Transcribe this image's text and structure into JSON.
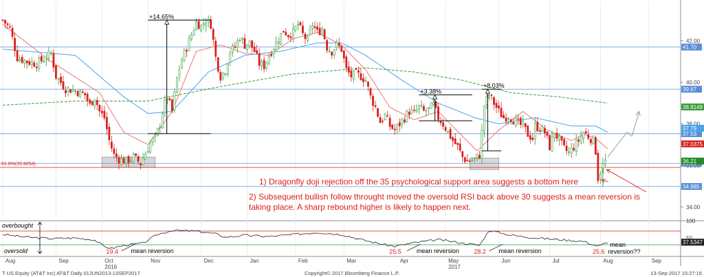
{
  "chart_data": {
    "type": "candlestick",
    "symbol": "T US Equity (AT&T Inc) AT&T",
    "footer": {
      "left": "T US Equity (AT&T Inc) AT&T  Daily 01JUN2013-13SEP2017",
      "center": "Copyright© 2017 Bloomberg Finance L.P.",
      "right": "13-Sep-2017 15:27:16"
    },
    "y_axis": {
      "range": [
        33.4,
        43.9
      ],
      "ticks": [
        34.0,
        36.0,
        38.0,
        40.0,
        42.0
      ],
      "tick_labels": [
        "34.00",
        "36.00",
        "38.00",
        "40.00",
        "42.00"
      ]
    },
    "x_axis": {
      "months": [
        "Aug",
        "Sep",
        "Oct",
        "Nov",
        "Dec",
        "Jan",
        "Feb",
        "Mar",
        "Apr",
        "May",
        "Jun",
        "Jul",
        "Aug",
        "Sep"
      ],
      "month_index": [
        0,
        22,
        41,
        60,
        82,
        101,
        121,
        141,
        163,
        183,
        205,
        226,
        247,
        267
      ],
      "years": [
        {
          "label": "2016",
          "index": 41
        },
        {
          "label": "2017",
          "index": 183
        }
      ],
      "count": 280
    },
    "price_anchors": [
      [
        0,
        43.0
      ],
      [
        3,
        42.6
      ],
      [
        6,
        41.2
      ],
      [
        10,
        41.0
      ],
      [
        14,
        40.9
      ],
      [
        18,
        41.2
      ],
      [
        20,
        41.4
      ],
      [
        22,
        40.3
      ],
      [
        26,
        39.7
      ],
      [
        30,
        39.6
      ],
      [
        34,
        39.4
      ],
      [
        36,
        38.9
      ],
      [
        38,
        39.3
      ],
      [
        40,
        38.6
      ],
      [
        42,
        38.3
      ],
      [
        44,
        37.2
      ],
      [
        46,
        36.5
      ],
      [
        48,
        36.3
      ],
      [
        51,
        36.2
      ],
      [
        54,
        36.4
      ],
      [
        57,
        36.1
      ],
      [
        59,
        36.6
      ],
      [
        61,
        37.1
      ],
      [
        63,
        37.3
      ],
      [
        65,
        38.0
      ],
      [
        66,
        38.6
      ],
      [
        68,
        39.3
      ],
      [
        70,
        38.6
      ],
      [
        72,
        40.2
      ],
      [
        74,
        41.1
      ],
      [
        76,
        41.7
      ],
      [
        78,
        42.3
      ],
      [
        80,
        42.9
      ],
      [
        82,
        42.7
      ],
      [
        84,
        43.0
      ],
      [
        86,
        42.8
      ],
      [
        88,
        41.2
      ],
      [
        90,
        40.3
      ],
      [
        92,
        40.6
      ],
      [
        94,
        41.5
      ],
      [
        96,
        41.7
      ],
      [
        98,
        42.2
      ],
      [
        100,
        41.8
      ],
      [
        102,
        41.9
      ],
      [
        104,
        41.5
      ],
      [
        106,
        40.9
      ],
      [
        108,
        40.8
      ],
      [
        110,
        41.3
      ],
      [
        112,
        41.7
      ],
      [
        114,
        42.1
      ],
      [
        116,
        42.5
      ],
      [
        118,
        42.3
      ],
      [
        120,
        42.4
      ],
      [
        122,
        42.8
      ],
      [
        124,
        42.3
      ],
      [
        126,
        42.0
      ],
      [
        128,
        42.8
      ],
      [
        130,
        42.4
      ],
      [
        132,
        42.6
      ],
      [
        134,
        41.7
      ],
      [
        136,
        41.5
      ],
      [
        138,
        41.8
      ],
      [
        140,
        41.6
      ],
      [
        142,
        40.6
      ],
      [
        144,
        40.3
      ],
      [
        146,
        40.4
      ],
      [
        148,
        40.3
      ],
      [
        150,
        40.1
      ],
      [
        152,
        39.3
      ],
      [
        154,
        38.8
      ],
      [
        156,
        38.1
      ],
      [
        158,
        38.4
      ],
      [
        160,
        37.9
      ],
      [
        162,
        37.7
      ],
      [
        164,
        38.0
      ],
      [
        166,
        38.3
      ],
      [
        168,
        38.6
      ],
      [
        170,
        38.5
      ],
      [
        172,
        38.8
      ],
      [
        174,
        38.6
      ],
      [
        176,
        38.7
      ],
      [
        178,
        38.9
      ],
      [
        180,
        38.3
      ],
      [
        182,
        38.0
      ],
      [
        184,
        37.6
      ],
      [
        186,
        37.2
      ],
      [
        188,
        36.9
      ],
      [
        190,
        36.4
      ],
      [
        192,
        36.2
      ],
      [
        195,
        36.3
      ],
      [
        197,
        36.5
      ],
      [
        198,
        37.6
      ],
      [
        199,
        38.9
      ],
      [
        201,
        39.4
      ],
      [
        203,
        39.0
      ],
      [
        205,
        38.6
      ],
      [
        207,
        38.3
      ],
      [
        209,
        38.4
      ],
      [
        211,
        38.2
      ],
      [
        213,
        38.0
      ],
      [
        215,
        37.9
      ],
      [
        217,
        37.5
      ],
      [
        219,
        37.3
      ],
      [
        220,
        37.9
      ],
      [
        222,
        37.8
      ],
      [
        224,
        37.6
      ],
      [
        226,
        36.9
      ],
      [
        228,
        37.6
      ],
      [
        230,
        37.2
      ],
      [
        232,
        36.8
      ],
      [
        234,
        36.6
      ],
      [
        236,
        36.9
      ],
      [
        238,
        37.2
      ],
      [
        240,
        37.6
      ],
      [
        242,
        37.4
      ],
      [
        244,
        37.2
      ],
      [
        245,
        36.7
      ],
      [
        246,
        35.4
      ],
      [
        247,
        35.7
      ],
      [
        248,
        36.0
      ],
      [
        249,
        36.2
      ]
    ],
    "moving_averages": [
      {
        "name": "ma_short",
        "color": "#e87878",
        "anchors": [
          [
            0,
            42.8
          ],
          [
            20,
            41.0
          ],
          [
            40,
            39.5
          ],
          [
            50,
            37.6
          ],
          [
            60,
            37.0
          ],
          [
            70,
            38.6
          ],
          [
            80,
            41.5
          ],
          [
            90,
            41.8
          ],
          [
            100,
            41.4
          ],
          [
            110,
            41.3
          ],
          [
            120,
            42.1
          ],
          [
            130,
            42.4
          ],
          [
            140,
            41.8
          ],
          [
            150,
            40.6
          ],
          [
            160,
            38.8
          ],
          [
            170,
            38.2
          ],
          [
            180,
            38.6
          ],
          [
            190,
            37.4
          ],
          [
            196,
            36.7
          ],
          [
            205,
            37.7
          ],
          [
            215,
            38.6
          ],
          [
            225,
            37.7
          ],
          [
            235,
            37.2
          ],
          [
            240,
            37.5
          ],
          [
            245,
            37.3
          ],
          [
            250,
            36.8
          ]
        ]
      },
      {
        "name": "ma_mid",
        "color": "#4aa2e8",
        "anchors": [
          [
            0,
            41.6
          ],
          [
            30,
            41.3
          ],
          [
            50,
            39.3
          ],
          [
            60,
            38.5
          ],
          [
            70,
            38.6
          ],
          [
            85,
            40.5
          ],
          [
            100,
            41.3
          ],
          [
            115,
            41.5
          ],
          [
            130,
            41.9
          ],
          [
            140,
            41.9
          ],
          [
            150,
            41.3
          ],
          [
            165,
            40.1
          ],
          [
            180,
            39.0
          ],
          [
            195,
            38.3
          ],
          [
            205,
            38.0
          ],
          [
            220,
            38.3
          ],
          [
            235,
            37.9
          ],
          [
            245,
            37.9
          ],
          [
            250,
            37.6
          ]
        ]
      },
      {
        "name": "ma_long",
        "color": "#3a9a3a",
        "dashed": true,
        "anchors": [
          [
            0,
            38.9
          ],
          [
            30,
            39.1
          ],
          [
            60,
            39.1
          ],
          [
            90,
            39.8
          ],
          [
            120,
            40.4
          ],
          [
            150,
            40.7
          ],
          [
            170,
            40.5
          ],
          [
            190,
            40.1
          ],
          [
            210,
            39.5
          ],
          [
            230,
            39.3
          ],
          [
            250,
            39.0
          ]
        ]
      }
    ],
    "hlines": [
      {
        "value": 41.7,
        "color": "#5a8fd6",
        "label": "41.70",
        "label_bg": "#5a8fd6"
      },
      {
        "value": 39.67,
        "color": "#5a8fd6",
        "label": "39.67",
        "label_bg": "#5a8fd6"
      },
      {
        "value": 37.53,
        "color": "#5a8fd6",
        "label": "37.53",
        "label_bg": "#5a8fd6"
      },
      {
        "value": 36.1,
        "color": "#5a8fd6",
        "label": "36.10",
        "label_bg": "#5a8fd6"
      },
      {
        "value": 34.985,
        "color": "#5a8fd6",
        "label": "34.985",
        "label_bg": "#5a8fd6"
      },
      {
        "value": 35.9054,
        "color": "#d9201a",
        "label": "61.8%(35.9054)"
      }
    ],
    "last_values": [
      {
        "value": 38.8149,
        "label": "38.8149",
        "bg": "#3a9a3a"
      },
      {
        "value": 37.79,
        "label": "37.79",
        "bg": "#4aa2e8"
      },
      {
        "value": 37.0375,
        "label": "37.0375",
        "bg": "#d9201a"
      },
      {
        "value": 36.21,
        "label": "36.21",
        "bg": "#2a8a2a"
      }
    ],
    "gain_annotations": [
      {
        "label": "+14.65%",
        "x1": 60,
        "x2": 86,
        "y_base": 37.53,
        "y_top": 43.0
      },
      {
        "label": "+3.38%",
        "x1": 172,
        "x2": 194,
        "y_base": 38.15,
        "y_top": 39.4
      },
      {
        "label": "+8.03%",
        "x1": 198,
        "x2": 206,
        "y_base": 36.7,
        "y_top": 39.67
      }
    ],
    "support_boxes": [
      {
        "x1": 41,
        "x2": 63,
        "y1": 35.9,
        "y2": 36.4
      },
      {
        "x1": 193,
        "x2": 205,
        "y1": 35.8,
        "y2": 36.35
      }
    ],
    "projection": {
      "points": [
        [
          250,
          36.4
        ],
        [
          254,
          37.0
        ],
        [
          258,
          37.6
        ],
        [
          260,
          37.4
        ],
        [
          263,
          38.6
        ]
      ]
    },
    "annotations": [
      "1) Dragonfly doji rejection off the 35 psychological support area suggests a bottom here",
      "2) Subsequent bullish follow throught moved the oversold RSI back above 30 suggests a mean reversion is",
      "taking place. A sharp rebound higher is likely to happen next."
    ],
    "rsi": {
      "range": [
        0,
        100
      ],
      "ticks": [
        50,
        100
      ],
      "tick_labels": [
        "50",
        "100"
      ],
      "overbought_label": "overbought",
      "oversold_label": "oversold",
      "last": {
        "value": 37.5347,
        "label": "37.5347"
      },
      "anchors": [
        [
          0,
          60
        ],
        [
          10,
          52
        ],
        [
          20,
          48
        ],
        [
          30,
          50
        ],
        [
          38,
          44
        ],
        [
          42,
          25
        ],
        [
          45,
          19.4
        ],
        [
          50,
          28
        ],
        [
          58,
          35
        ],
        [
          64,
          60
        ],
        [
          70,
          72
        ],
        [
          80,
          70
        ],
        [
          88,
          62
        ],
        [
          92,
          52
        ],
        [
          100,
          58
        ],
        [
          110,
          54
        ],
        [
          120,
          60
        ],
        [
          130,
          66
        ],
        [
          140,
          60
        ],
        [
          150,
          42
        ],
        [
          158,
          30
        ],
        [
          162,
          25.5
        ],
        [
          170,
          36
        ],
        [
          180,
          45
        ],
        [
          190,
          35
        ],
        [
          197,
          28.2
        ],
        [
          201,
          72
        ],
        [
          210,
          58
        ],
        [
          220,
          50
        ],
        [
          230,
          45
        ],
        [
          240,
          40
        ],
        [
          246,
          25.6
        ],
        [
          250,
          37.5
        ]
      ],
      "labels": [
        {
          "text": "19.4",
          "x": 45
        },
        {
          "text": "25.5",
          "x": 162
        },
        {
          "text": "28.2",
          "x": 197
        },
        {
          "text": "25.6",
          "x": 246
        }
      ],
      "mean_reversion": [
        {
          "text": "mean reversion",
          "x": 53
        },
        {
          "text": "mean reversion",
          "x": 171
        },
        {
          "text": "mean reversion",
          "x": 205
        },
        {
          "text": "mean",
          "x": 251
        },
        {
          "text": "reversion??",
          "x": 251
        }
      ]
    }
  }
}
